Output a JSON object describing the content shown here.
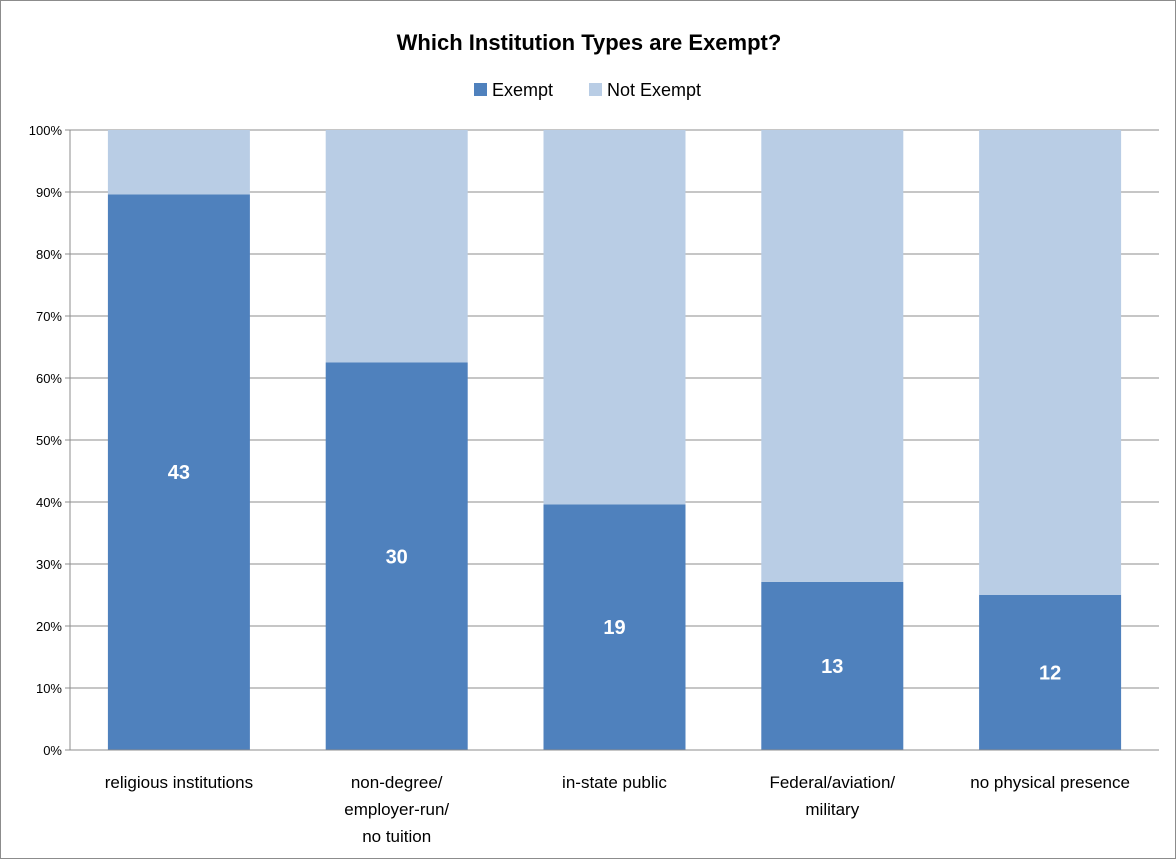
{
  "chart_data": {
    "type": "bar",
    "stacked": true,
    "percent_stacked": true,
    "title": "Which Institution Types are Exempt?",
    "categories": [
      [
        "religious institutions"
      ],
      [
        "non-degree/",
        "employer-run/",
        "no tuition"
      ],
      [
        "in-state public"
      ],
      [
        "Federal/aviation/",
        "military"
      ],
      [
        "no physical presence"
      ]
    ],
    "series": [
      {
        "name": "Exempt",
        "color": "#4f81bd",
        "values": [
          89.6,
          62.5,
          39.6,
          27.1,
          25.0
        ],
        "labels": [
          "43",
          "30",
          "19",
          "13",
          "12"
        ]
      },
      {
        "name": "Not Exempt",
        "color": "#b9cde5",
        "values": [
          10.4,
          37.5,
          60.4,
          72.9,
          75.0
        ]
      }
    ],
    "ylim": [
      0,
      100
    ],
    "yticks": [
      "0%",
      "10%",
      "20%",
      "30%",
      "40%",
      "50%",
      "60%",
      "70%",
      "80%",
      "90%",
      "100%"
    ],
    "grid": true,
    "legend": "top-center",
    "xlabel": "",
    "ylabel": ""
  }
}
